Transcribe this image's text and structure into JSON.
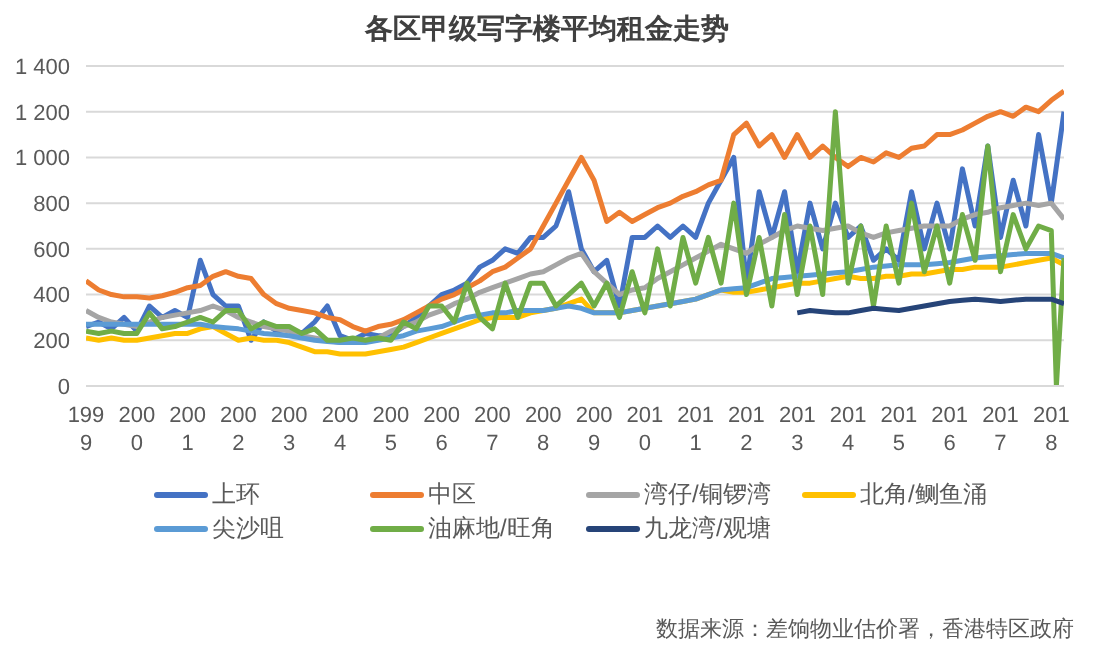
{
  "chart_data": {
    "type": "line",
    "title": "各区甲级写字楼平均租金走势",
    "x": [
      1999,
      1999.25,
      1999.5,
      1999.75,
      2000,
      2000.25,
      2000.5,
      2000.75,
      2001,
      2001.25,
      2001.5,
      2001.75,
      2002,
      2002.25,
      2002.5,
      2002.75,
      2003,
      2003.25,
      2003.5,
      2003.75,
      2004,
      2004.25,
      2004.5,
      2004.75,
      2005,
      2005.25,
      2005.5,
      2005.75,
      2006,
      2006.25,
      2006.5,
      2006.75,
      2007,
      2007.25,
      2007.5,
      2007.75,
      2008,
      2008.25,
      2008.5,
      2008.75,
      2009,
      2009.25,
      2009.5,
      2009.75,
      2010,
      2010.25,
      2010.5,
      2010.75,
      2011,
      2011.25,
      2011.5,
      2011.75,
      2012,
      2012.25,
      2012.5,
      2012.75,
      2013,
      2013.25,
      2013.5,
      2013.75,
      2014,
      2014.25,
      2014.5,
      2014.75,
      2015,
      2015.25,
      2015.5,
      2015.75,
      2016,
      2016.25,
      2016.5,
      2016.75,
      2017,
      2017.25,
      2017.5,
      2017.75,
      2018,
      2018.25
    ],
    "series": [
      {
        "name": "上环",
        "color": "#4472c4",
        "values": [
          260,
          280,
          250,
          300,
          240,
          350,
          300,
          330,
          300,
          550,
          400,
          350,
          350,
          200,
          280,
          240,
          250,
          230,
          280,
          350,
          220,
          200,
          230,
          220,
          220,
          260,
          300,
          350,
          400,
          420,
          450,
          520,
          550,
          600,
          580,
          650,
          650,
          700,
          850,
          600,
          500,
          550,
          350,
          650,
          650,
          700,
          650,
          700,
          650,
          800,
          900,
          1000,
          450,
          850,
          650,
          850,
          500,
          800,
          600,
          800,
          650,
          700,
          550,
          600,
          550,
          850,
          600,
          800,
          600,
          950,
          700,
          1050,
          650,
          900,
          700,
          1100,
          800,
          1200
        ]
      },
      {
        "name": "中区",
        "color": "#ed7d31",
        "values": [
          460,
          420,
          400,
          390,
          390,
          385,
          395,
          410,
          430,
          440,
          480,
          500,
          480,
          470,
          400,
          360,
          340,
          330,
          320,
          300,
          290,
          260,
          240,
          260,
          270,
          290,
          320,
          350,
          380,
          400,
          430,
          460,
          500,
          520,
          560,
          600,
          700,
          800,
          900,
          1000,
          900,
          720,
          760,
          720,
          750,
          780,
          800,
          830,
          850,
          880,
          900,
          1100,
          1150,
          1050,
          1100,
          1000,
          1100,
          1000,
          1050,
          1000,
          960,
          1000,
          980,
          1020,
          1000,
          1040,
          1050,
          1100,
          1100,
          1120,
          1150,
          1180,
          1200,
          1180,
          1220,
          1200,
          1250,
          1290
        ]
      },
      {
        "name": "湾仔/铜锣湾",
        "color": "#a5a5a5",
        "values": [
          330,
          300,
          280,
          270,
          260,
          280,
          300,
          310,
          320,
          330,
          350,
          330,
          300,
          280,
          260,
          250,
          240,
          220,
          210,
          200,
          190,
          190,
          200,
          210,
          240,
          260,
          280,
          310,
          330,
          360,
          380,
          410,
          430,
          450,
          470,
          490,
          500,
          530,
          560,
          580,
          500,
          450,
          400,
          420,
          430,
          470,
          500,
          530,
          560,
          590,
          620,
          600,
          580,
          620,
          650,
          680,
          700,
          690,
          680,
          690,
          700,
          670,
          650,
          670,
          680,
          690,
          700,
          700,
          700,
          730,
          750,
          760,
          780,
          790,
          800,
          790,
          800,
          730
        ]
      },
      {
        "name": "北角/鲗鱼涌",
        "color": "#ffc000",
        "values": [
          210,
          200,
          210,
          200,
          200,
          210,
          220,
          230,
          230,
          250,
          260,
          230,
          200,
          210,
          200,
          200,
          190,
          170,
          150,
          150,
          140,
          140,
          140,
          150,
          160,
          170,
          190,
          210,
          230,
          250,
          270,
          290,
          300,
          300,
          300,
          320,
          330,
          340,
          360,
          380,
          320,
          320,
          320,
          330,
          340,
          350,
          360,
          370,
          380,
          400,
          420,
          410,
          410,
          420,
          430,
          440,
          450,
          450,
          460,
          470,
          480,
          470,
          470,
          480,
          480,
          490,
          490,
          500,
          510,
          510,
          520,
          520,
          520,
          530,
          540,
          550,
          560,
          530
        ]
      },
      {
        "name": "尖沙咀",
        "color": "#5b9bd5",
        "values": [
          270,
          270,
          270,
          270,
          270,
          270,
          270,
          270,
          270,
          270,
          260,
          255,
          250,
          240,
          230,
          225,
          220,
          210,
          200,
          195,
          190,
          190,
          190,
          200,
          210,
          220,
          240,
          250,
          260,
          280,
          300,
          310,
          320,
          320,
          330,
          330,
          330,
          340,
          350,
          340,
          320,
          320,
          320,
          330,
          340,
          350,
          360,
          370,
          380,
          400,
          420,
          425,
          430,
          450,
          470,
          475,
          480,
          485,
          490,
          495,
          500,
          510,
          520,
          525,
          530,
          530,
          530,
          535,
          540,
          550,
          560,
          565,
          570,
          575,
          580,
          580,
          580,
          560
        ]
      },
      {
        "name": "油麻地/旺角",
        "color": "#70ad47",
        "x": [
          1999,
          1999.25,
          1999.5,
          1999.75,
          2000,
          2000.25,
          2000.5,
          2000.75,
          2001,
          2001.25,
          2001.5,
          2001.75,
          2002,
          2002.25,
          2002.5,
          2002.75,
          2003,
          2003.25,
          2003.5,
          2003.75,
          2004,
          2004.25,
          2004.5,
          2004.75,
          2005,
          2005.25,
          2005.5,
          2005.75,
          2006,
          2006.25,
          2006.5,
          2006.75,
          2007,
          2007.25,
          2007.5,
          2007.75,
          2008,
          2008.25,
          2008.5,
          2008.75,
          2009,
          2009.25,
          2009.5,
          2009.75,
          2010,
          2010.25,
          2010.5,
          2010.75,
          2011,
          2011.25,
          2011.5,
          2011.75,
          2012,
          2012.25,
          2012.5,
          2012.75,
          2013,
          2013.25,
          2013.5,
          2013.75,
          2014,
          2014.25,
          2014.5,
          2014.75,
          2015,
          2015.25,
          2015.5,
          2015.75,
          2016,
          2016.25,
          2016.5,
          2016.75,
          2017,
          2017.25,
          2017.5,
          2017.75,
          2018,
          2018.1,
          2018.25
        ],
        "values": [
          240,
          230,
          240,
          230,
          230,
          320,
          250,
          260,
          280,
          300,
          280,
          330,
          330,
          250,
          280,
          260,
          260,
          230,
          250,
          200,
          200,
          210,
          200,
          210,
          200,
          280,
          250,
          350,
          350,
          280,
          450,
          300,
          250,
          450,
          300,
          450,
          450,
          350,
          400,
          450,
          350,
          450,
          300,
          500,
          320,
          600,
          350,
          650,
          450,
          650,
          450,
          800,
          400,
          650,
          350,
          750,
          400,
          700,
          400,
          1200,
          450,
          700,
          350,
          700,
          450,
          800,
          500,
          700,
          450,
          750,
          550,
          1050,
          500,
          750,
          600,
          700,
          680,
          0,
          560
        ]
      },
      {
        "name": "九龙湾/观塘",
        "color": "#264478",
        "values": [
          null,
          null,
          null,
          null,
          null,
          null,
          null,
          null,
          null,
          null,
          null,
          null,
          null,
          null,
          null,
          null,
          null,
          null,
          null,
          null,
          null,
          null,
          null,
          null,
          null,
          null,
          null,
          null,
          null,
          null,
          null,
          null,
          null,
          null,
          null,
          null,
          null,
          null,
          null,
          null,
          null,
          null,
          null,
          null,
          null,
          null,
          null,
          null,
          null,
          null,
          null,
          null,
          null,
          null,
          null,
          null,
          320,
          330,
          325,
          320,
          320,
          330,
          340,
          335,
          330,
          340,
          350,
          360,
          370,
          375,
          380,
          375,
          370,
          375,
          380,
          380,
          380,
          360
        ]
      }
    ],
    "xlim": [
      1999,
      2018.25
    ],
    "xticks": [
      1999,
      2000,
      2001,
      2002,
      2003,
      2004,
      2005,
      2006,
      2007,
      2008,
      2009,
      2010,
      2011,
      2012,
      2013,
      2014,
      2015,
      2016,
      2017,
      2018
    ],
    "ylim": [
      0,
      1400
    ],
    "yticks": [
      0,
      200,
      400,
      600,
      800,
      {
        "value": 1000,
        "label": "1 000"
      },
      {
        "value": 1200,
        "label": "1 200"
      },
      {
        "value": 1400,
        "label": "1 400"
      }
    ],
    "grid": "y",
    "legend": "bottom",
    "marker": "none",
    "line_style": "solid",
    "annotations": [
      "数据来源：差饷物业估价署，香港特区政府"
    ]
  }
}
